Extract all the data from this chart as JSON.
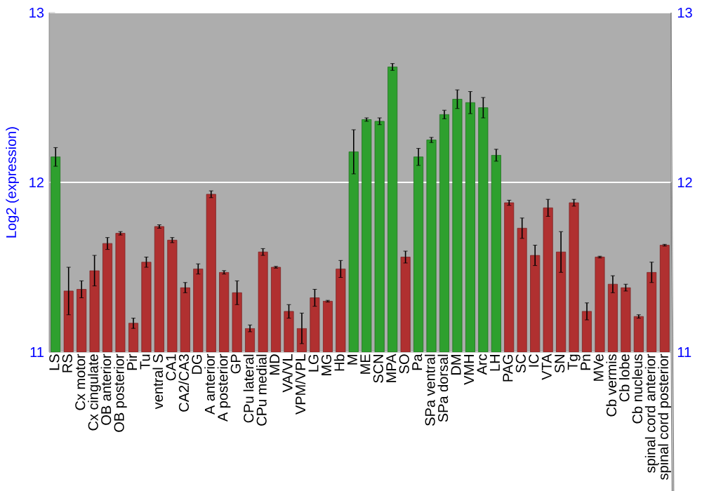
{
  "chart_data": {
    "type": "bar",
    "ylabel": "Log2 (expression)",
    "categories": [
      "LS",
      "RS",
      "Cx motor",
      "Cx cingulate",
      "OB anterior",
      "OB posterior",
      "Pir",
      "Tu",
      "ventral S",
      "CA1",
      "CA2/CA3",
      "DG",
      "A anterior",
      "A posterior",
      "GP",
      "CPu lateral",
      "CPu medial",
      "MD",
      "VA/VL",
      "VPM/VPL",
      "LG",
      "MG",
      "Hb",
      "M",
      "ME",
      "SCN",
      "MPA",
      "SO",
      "Pa",
      "SPa ventral",
      "SPa dorsal",
      "DM",
      "VMH",
      "Arc",
      "LH",
      "PAG",
      "SC",
      "IC",
      "VTA",
      "SN",
      "Tg",
      "Pn",
      "MVe",
      "Cb vermis",
      "Cb lobe",
      "Cb nucleus",
      "spinal cord anterior",
      "spinal cord posterior"
    ],
    "values": [
      12.15,
      11.36,
      11.37,
      11.48,
      11.64,
      11.7,
      11.17,
      11.53,
      11.74,
      11.66,
      11.38,
      11.49,
      11.93,
      11.47,
      11.35,
      11.14,
      11.59,
      11.5,
      11.24,
      11.14,
      11.32,
      11.3,
      11.49,
      12.18,
      12.37,
      12.36,
      12.68,
      11.56,
      12.15,
      12.25,
      12.4,
      12.49,
      12.47,
      12.44,
      12.16,
      11.88,
      11.73,
      11.57,
      11.85,
      11.59,
      11.88,
      11.24,
      11.56,
      11.4,
      11.38,
      11.21,
      11.47,
      11.63
    ],
    "errors": [
      0.055,
      0.14,
      0.05,
      0.09,
      0.035,
      0.01,
      0.03,
      0.03,
      0.01,
      0.015,
      0.03,
      0.03,
      0.02,
      0.01,
      0.07,
      0.02,
      0.02,
      0.005,
      0.04,
      0.09,
      0.05,
      0.005,
      0.05,
      0.13,
      0.01,
      0.02,
      0.02,
      0.035,
      0.05,
      0.015,
      0.025,
      0.055,
      0.065,
      0.06,
      0.035,
      0.015,
      0.06,
      0.06,
      0.05,
      0.12,
      0.02,
      0.05,
      0.005,
      0.05,
      0.02,
      0.01,
      0.06,
      0.005
    ],
    "colors": [
      "#2ea02e",
      "#b03030",
      "#b03030",
      "#b03030",
      "#b03030",
      "#b03030",
      "#b03030",
      "#b03030",
      "#b03030",
      "#b03030",
      "#b03030",
      "#b03030",
      "#b03030",
      "#b03030",
      "#b03030",
      "#b03030",
      "#b03030",
      "#b03030",
      "#b03030",
      "#b03030",
      "#b03030",
      "#b03030",
      "#b03030",
      "#2ea02e",
      "#2ea02e",
      "#2ea02e",
      "#2ea02e",
      "#b03030",
      "#2ea02e",
      "#2ea02e",
      "#2ea02e",
      "#2ea02e",
      "#2ea02e",
      "#2ea02e",
      "#2ea02e",
      "#b03030",
      "#b03030",
      "#b03030",
      "#b03030",
      "#b03030",
      "#b03030",
      "#b03030",
      "#b03030",
      "#b03030",
      "#b03030",
      "#b03030",
      "#b03030",
      "#b03030"
    ],
    "ylim": [
      11,
      13
    ],
    "yticks": [
      11,
      12,
      13
    ],
    "y2lim": [
      11,
      13
    ],
    "y2ticks": [
      11,
      12,
      13
    ],
    "grid": "y"
  }
}
